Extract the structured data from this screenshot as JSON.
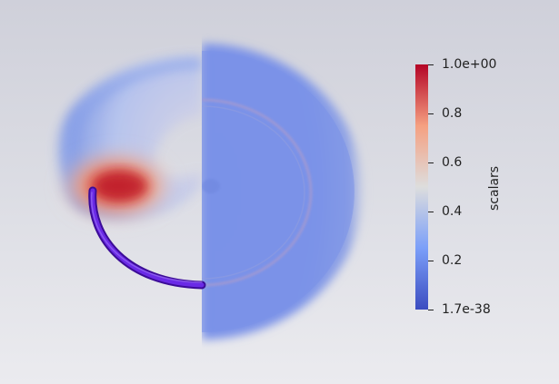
{
  "colorbar": {
    "title": "scalars",
    "colors": {
      "max": "#b40426",
      "mid": "#dddddd",
      "min": "#3b4cc0"
    },
    "ticks": [
      {
        "value": 1.0,
        "label": "1.0e+00"
      },
      {
        "value": 0.8,
        "label": "0.8"
      },
      {
        "value": 0.6,
        "label": "0.6"
      },
      {
        "value": 0.4,
        "label": "0.4"
      },
      {
        "value": 0.2,
        "label": "0.2"
      },
      {
        "value": 0.0,
        "label": "1.7e-38"
      }
    ]
  },
  "scene": {
    "background_top": "#cfd0da",
    "background_bottom": "#ebebef",
    "streamline_color": "#5a17d8"
  }
}
